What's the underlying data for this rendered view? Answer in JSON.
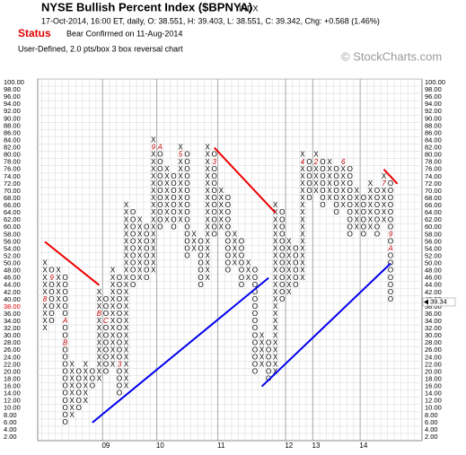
{
  "chart_data": {
    "type": "pnf",
    "title": "NYSE Bullish Percent Index ($BPNYA)",
    "exchange": "INDX",
    "subtitle": "17-Oct-2014, 16:00 ET, daily, O: 38.551, H: 39.403, L: 38.551, C: 39.342, Chg: +0.568 (1.46%)",
    "status_label": "Status",
    "status_text": "Bear Confirmed on 11-Aug-2014",
    "settings": "User-Defined, 2.0 pts/box 3 box reversal chart",
    "watermark": "© StockCharts.com",
    "ylim": [
      2,
      100
    ],
    "yticks": [
      {
        "value": 100,
        "label": "100.00"
      },
      {
        "value": 98,
        "label": "98.00"
      },
      {
        "value": 96,
        "label": "96.00"
      },
      {
        "value": 94,
        "label": "94.00"
      },
      {
        "value": 92,
        "label": "92.00"
      },
      {
        "value": 90,
        "label": "90.00"
      },
      {
        "value": 88,
        "label": "88.00"
      },
      {
        "value": 86,
        "label": "86.00"
      },
      {
        "value": 84,
        "label": "84.00"
      },
      {
        "value": 82,
        "label": "82.00"
      },
      {
        "value": 80,
        "label": "80.00"
      },
      {
        "value": 78,
        "label": "78.00"
      },
      {
        "value": 76,
        "label": "76.00"
      },
      {
        "value": 74,
        "label": "74.00"
      },
      {
        "value": 72,
        "label": "72.00"
      },
      {
        "value": 70,
        "label": "70.00"
      },
      {
        "value": 68,
        "label": "68.00"
      },
      {
        "value": 66,
        "label": "66.00"
      },
      {
        "value": 64,
        "label": "64.00"
      },
      {
        "value": 62,
        "label": "62.00"
      },
      {
        "value": 60,
        "label": "60.00"
      },
      {
        "value": 58,
        "label": "58.00"
      },
      {
        "value": 56,
        "label": "56.00"
      },
      {
        "value": 54,
        "label": "54.00"
      },
      {
        "value": 52,
        "label": "52.00"
      },
      {
        "value": 50,
        "label": "50.00"
      },
      {
        "value": 48,
        "label": "48.00"
      },
      {
        "value": 46,
        "label": "46.00"
      },
      {
        "value": 44,
        "label": "44.00"
      },
      {
        "value": 42,
        "label": "42.00"
      },
      {
        "value": 40,
        "label": "40.00"
      },
      {
        "value": 38,
        "label": "38.00"
      },
      {
        "value": 36,
        "label": "36.00"
      },
      {
        "value": 34,
        "label": "34.00"
      },
      {
        "value": 32,
        "label": "32.00"
      },
      {
        "value": 30,
        "label": "30.00"
      },
      {
        "value": 28,
        "label": "28.00"
      },
      {
        "value": 26,
        "label": "26.00"
      },
      {
        "value": 24,
        "label": "24.00"
      },
      {
        "value": 22,
        "label": "22.00"
      },
      {
        "value": 20,
        "label": "20.00"
      },
      {
        "value": 18,
        "label": "18.00"
      },
      {
        "value": 16,
        "label": "16.00"
      },
      {
        "value": 14,
        "label": "14.00"
      },
      {
        "value": 12,
        "label": "12.00"
      },
      {
        "value": 10,
        "label": "10.00"
      },
      {
        "value": 8,
        "label": "8.00"
      },
      {
        "value": 6,
        "label": "6.00"
      },
      {
        "value": 4,
        "label": "4.00"
      },
      {
        "value": 2,
        "label": "2.00"
      }
    ],
    "columns": [
      {
        "type": "X",
        "low": 32,
        "high": 50
      },
      {
        "type": "O",
        "low": 34,
        "high": 48
      },
      {
        "type": "X",
        "low": 38,
        "high": 48
      },
      {
        "type": "O",
        "low": 6,
        "high": 46
      },
      {
        "type": "X",
        "low": 8,
        "high": 22
      },
      {
        "type": "O",
        "low": 10,
        "high": 20
      },
      {
        "type": "X",
        "low": 12,
        "high": 22
      },
      {
        "type": "O",
        "low": 16,
        "high": 20
      },
      {
        "type": "X",
        "low": 18,
        "high": 42
      },
      {
        "type": "O",
        "low": 20,
        "high": 40
      },
      {
        "type": "X",
        "low": 22,
        "high": 48
      },
      {
        "type": "O",
        "low": 14,
        "high": 46
      },
      {
        "type": "X",
        "low": 16,
        "high": 66
      },
      {
        "type": "O",
        "low": 44,
        "high": 64
      },
      {
        "type": "X",
        "low": 46,
        "high": 62
      },
      {
        "type": "O",
        "low": 46,
        "high": 60
      },
      {
        "type": "X",
        "low": 48,
        "high": 84
      },
      {
        "type": "O",
        "low": 60,
        "high": 82
      },
      {
        "type": "X",
        "low": 62,
        "high": 76
      },
      {
        "type": "O",
        "low": 60,
        "high": 74
      },
      {
        "type": "X",
        "low": 62,
        "high": 82
      },
      {
        "type": "O",
        "low": 52,
        "high": 80
      },
      {
        "type": "X",
        "low": 54,
        "high": 58
      },
      {
        "type": "O",
        "low": 44,
        "high": 56
      },
      {
        "type": "X",
        "low": 46,
        "high": 82
      },
      {
        "type": "O",
        "low": 58,
        "high": 80
      },
      {
        "type": "X",
        "low": 60,
        "high": 70
      },
      {
        "type": "O",
        "low": 48,
        "high": 68
      },
      {
        "type": "X",
        "low": 50,
        "high": 58
      },
      {
        "type": "O",
        "low": 44,
        "high": 56
      },
      {
        "type": "X",
        "low": 46,
        "high": 50
      },
      {
        "type": "O",
        "low": 20,
        "high": 48
      },
      {
        "type": "X",
        "low": 22,
        "high": 30
      },
      {
        "type": "O",
        "low": 18,
        "high": 28
      },
      {
        "type": "X",
        "low": 20,
        "high": 66
      },
      {
        "type": "O",
        "low": 40,
        "high": 64
      },
      {
        "type": "X",
        "low": 42,
        "high": 56
      },
      {
        "type": "O",
        "low": 44,
        "high": 54
      },
      {
        "type": "X",
        "low": 46,
        "high": 80
      },
      {
        "type": "O",
        "low": 68,
        "high": 78
      },
      {
        "type": "X",
        "low": 70,
        "high": 80
      },
      {
        "type": "O",
        "low": 66,
        "high": 78
      },
      {
        "type": "X",
        "low": 68,
        "high": 78
      },
      {
        "type": "O",
        "low": 64,
        "high": 76
      },
      {
        "type": "X",
        "low": 66,
        "high": 78
      },
      {
        "type": "O",
        "low": 58,
        "high": 76
      },
      {
        "type": "X",
        "low": 60,
        "high": 70
      },
      {
        "type": "O",
        "low": 58,
        "high": 68
      },
      {
        "type": "X",
        "low": 60,
        "high": 72
      },
      {
        "type": "O",
        "low": 58,
        "high": 70
      },
      {
        "type": "X",
        "low": 62,
        "high": 74
      },
      {
        "type": "O",
        "low": 40,
        "high": 72
      }
    ],
    "markers": [
      {
        "col": 0,
        "value": 40,
        "label": "8"
      },
      {
        "col": 1,
        "value": 46,
        "label": "9"
      },
      {
        "col": 3,
        "value": 34,
        "label": "A"
      },
      {
        "col": 3,
        "value": 28,
        "label": "B"
      },
      {
        "col": 8,
        "value": 36,
        "label": "B"
      },
      {
        "col": 9,
        "value": 34,
        "label": "C"
      },
      {
        "col": 11,
        "value": 22,
        "label": "3"
      },
      {
        "col": 16,
        "value": 82,
        "label": "9"
      },
      {
        "col": 17,
        "value": 82,
        "label": "A"
      },
      {
        "col": 20,
        "value": 80,
        "label": "5"
      },
      {
        "col": 25,
        "value": 78,
        "label": "3"
      },
      {
        "col": 38,
        "value": 78,
        "label": "4"
      },
      {
        "col": 40,
        "value": 78,
        "label": "2"
      },
      {
        "col": 44,
        "value": 78,
        "label": "6"
      },
      {
        "col": 50,
        "value": 72,
        "label": "7"
      },
      {
        "col": 51,
        "value": 58,
        "label": "9"
      },
      {
        "col": 51,
        "value": 54,
        "label": "A"
      }
    ],
    "trendlines": [
      {
        "color": "#ee0000",
        "points": [
          [
            0,
            56
          ],
          [
            8,
            44
          ]
        ]
      },
      {
        "color": "#ee0000",
        "points": [
          [
            25,
            82
          ],
          [
            34,
            64
          ]
        ]
      },
      {
        "color": "#ee0000",
        "points": [
          [
            50,
            76
          ],
          [
            52,
            72
          ]
        ]
      },
      {
        "color": "#0000ee",
        "points": [
          [
            7,
            6
          ],
          [
            33,
            46
          ]
        ]
      },
      {
        "color": "#0000ee",
        "points": [
          [
            32,
            16
          ],
          [
            51,
            50
          ]
        ]
      }
    ],
    "x_labels": [
      {
        "col": 9,
        "label": "09"
      },
      {
        "col": 17,
        "label": "10"
      },
      {
        "col": 26,
        "label": "11"
      },
      {
        "col": 36,
        "label": "12"
      },
      {
        "col": 40,
        "label": "13"
      },
      {
        "col": 47,
        "label": "14"
      }
    ],
    "left_marker": {
      "value": 38,
      "label": "38.00"
    },
    "last_value": 39.34
  }
}
